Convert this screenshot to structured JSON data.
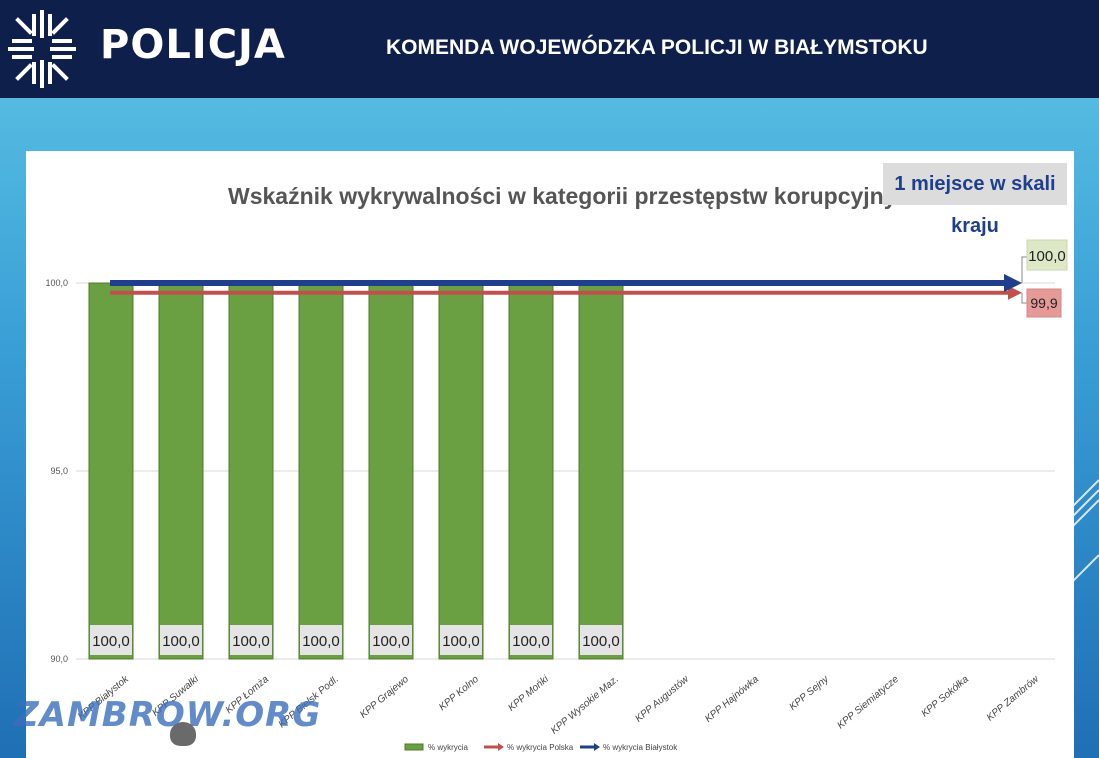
{
  "header": {
    "logo_text": "POLICJA",
    "org_title": "KOMENDA WOJEWÓDZKA POLICJI W BIAŁYMSTOKU"
  },
  "badge": "1 miejsce w skali kraju",
  "watermark": "ZAMBROW.ORG",
  "colors": {
    "header": "#0d1f4a",
    "bar": "#6a9f42",
    "line_poland": "#c0504d",
    "line_bialystok": "#1f3f8c",
    "badge_text": "#1f3f8c"
  },
  "chart_data": {
    "type": "bar",
    "title": "Wskaźnik wykrywalności w kategorii przestępstw korupcyjnych 2025",
    "categories": [
      "KPP Białystok",
      "KPP Suwałki",
      "KPP Łomża",
      "KPP Bielsk Podl.",
      "KPP Grajewo",
      "KPP Kolno",
      "KPP Mońki",
      "KPP Wysokie Maz.",
      "KPP Augustów",
      "KPP Hajnówka",
      "KPP Sejny",
      "KPP Siemiatycze",
      "KPP Sokółka",
      "KPP Zambrów"
    ],
    "series": [
      {
        "name": "% wykrycia",
        "type": "bar",
        "values": [
          100.0,
          100.0,
          100.0,
          100.0,
          100.0,
          100.0,
          100.0,
          100.0,
          null,
          null,
          null,
          null,
          null,
          null
        ]
      },
      {
        "name": "% wykrycia Polska",
        "type": "line",
        "value": 99.9,
        "label": "99,9"
      },
      {
        "name": "% wykrycia Białystok",
        "type": "line",
        "value": 100.0,
        "label": "100,0"
      }
    ],
    "bar_labels": [
      "100,0",
      "100,0",
      "100,0",
      "100,0",
      "100,0",
      "100,0",
      "100,0",
      "100,0"
    ],
    "ylim": [
      90,
      100
    ],
    "yticks": [
      90.0,
      95.0,
      100.0
    ],
    "ytick_labels": [
      "90,0",
      "95,0",
      "100,0"
    ],
    "grid": true,
    "legend_position": "bottom"
  }
}
